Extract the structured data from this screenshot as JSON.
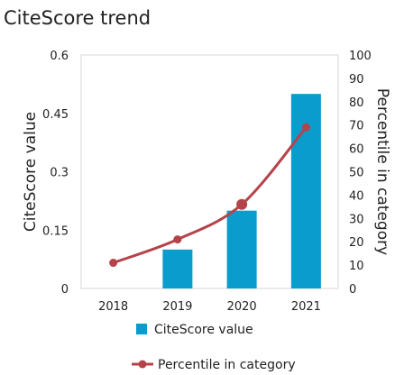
{
  "chart_data": {
    "title": "CiteScore trend",
    "categories": [
      "2018",
      "2019",
      "2020",
      "2021"
    ],
    "left_axis": {
      "label": "CiteScore value",
      "ylim": [
        0,
        0.6
      ],
      "ticks": [
        "0",
        "0.15",
        "0.3",
        "0.45",
        "0.6"
      ]
    },
    "right_axis": {
      "label": "Percentile in category",
      "ylim": [
        0,
        100
      ],
      "ticks": [
        "0",
        "10",
        "20",
        "30",
        "40",
        "50",
        "60",
        "70",
        "80",
        "90",
        "100"
      ]
    },
    "series": [
      {
        "name": "CiteScore value",
        "type": "bar",
        "axis": "left",
        "values": [
          0,
          0.1,
          0.2,
          0.5
        ],
        "color": "#0a9ccc"
      },
      {
        "name": "Percentile in category",
        "type": "line",
        "axis": "right",
        "smooth": true,
        "values": [
          11,
          21,
          36,
          69
        ],
        "color": "#b5434a"
      }
    ],
    "grid": false,
    "legend_position": "bottom"
  }
}
